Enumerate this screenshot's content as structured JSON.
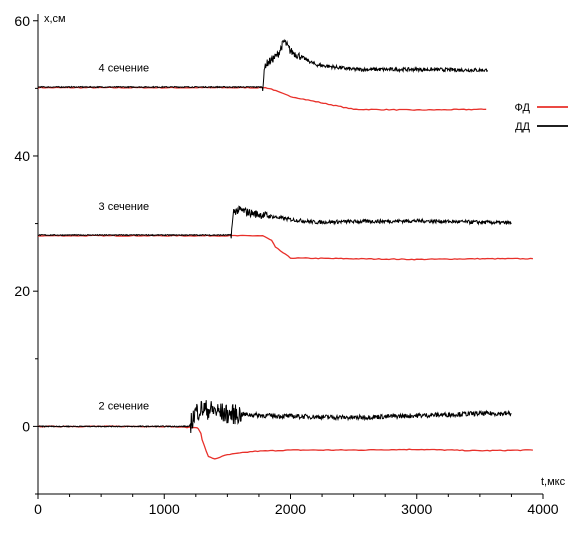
{
  "chart_data": {
    "type": "line",
    "title": "",
    "xlabel": "t,мкс",
    "ylabel": "x,см",
    "xlim": [
      0,
      4000
    ],
    "ylim": [
      -10,
      61
    ],
    "xticks": [
      0,
      1000,
      2000,
      3000,
      4000
    ],
    "yticks": [
      0,
      20,
      40,
      60
    ],
    "grid": false,
    "legend_position": "right",
    "annotations": [
      {
        "text": "4 сечение",
        "x": 680,
        "y": 52.5
      },
      {
        "text": "3 сечение",
        "x": 680,
        "y": 32.0
      },
      {
        "text": "2 сечение",
        "x": 680,
        "y": 2.5
      }
    ],
    "series": [
      {
        "name": "ФД",
        "color": "#e8302a",
        "groups": [
          {
            "x": [
              0,
              1500,
              1700,
              1780,
              1800,
              1850,
              1900,
              2000,
              2500,
              3000,
              3550
            ],
            "y": [
              50.1,
              50.1,
              50.1,
              50.1,
              50.1,
              49.9,
              49.5,
              48.8,
              46.9,
              46.8,
              46.9
            ]
          },
          {
            "x": [
              0,
              1500,
              1700,
              1760,
              1780,
              1820,
              1850,
              1880,
              2000,
              2500,
              3000,
              3500,
              3920
            ],
            "y": [
              28.2,
              28.2,
              28.2,
              28.2,
              28.2,
              27.8,
              27.5,
              26.5,
              24.9,
              24.8,
              24.7,
              24.8,
              24.8
            ]
          },
          {
            "x": [
              0,
              1000,
              1260,
              1270,
              1290,
              1300,
              1350,
              1400,
              1500,
              1700,
              2000,
              2500,
              3000,
              3500,
              3920
            ],
            "y": [
              0,
              0,
              -0.2,
              -0.3,
              -1.0,
              -2.0,
              -4.5,
              -4.8,
              -4.2,
              -3.7,
              -3.5,
              -3.5,
              -3.4,
              -3.6,
              -3.5
            ]
          }
        ]
      },
      {
        "name": "ДД",
        "color": "#000000",
        "groups": [
          {
            "x": [
              0,
              1500,
              1750,
              1780,
              1800,
              1850,
              1900,
              1950,
              2000,
              2200,
              2500,
              3000,
              3500,
              3560
            ],
            "y": [
              50.2,
              50.2,
              50.2,
              50.2,
              53.5,
              54.2,
              55.0,
              57.0,
              55.5,
              53.5,
              52.8,
              52.8,
              52.7,
              52.7
            ]
          },
          {
            "x": [
              0,
              1000,
              1520,
              1530,
              1550,
              1600,
              1700,
              1800,
              2000,
              2200,
              2500,
              3000,
              3500,
              3750
            ],
            "y": [
              28.3,
              28.3,
              28.3,
              28.4,
              31.8,
              32.0,
              31.5,
              31.2,
              30.6,
              30.2,
              30.3,
              30.4,
              30.2,
              30.1
            ]
          },
          {
            "x": [
              0,
              1000,
              1200,
              1210,
              1250,
              1300,
              1400,
              1500,
              1600,
              1800,
              2000,
              2500,
              3000,
              3500,
              3750
            ],
            "y": [
              0,
              0,
              0,
              0.5,
              2.2,
              2.6,
              2.3,
              1.8,
              1.8,
              1.6,
              1.5,
              1.3,
              1.6,
              1.9,
              1.9
            ]
          }
        ]
      }
    ]
  }
}
